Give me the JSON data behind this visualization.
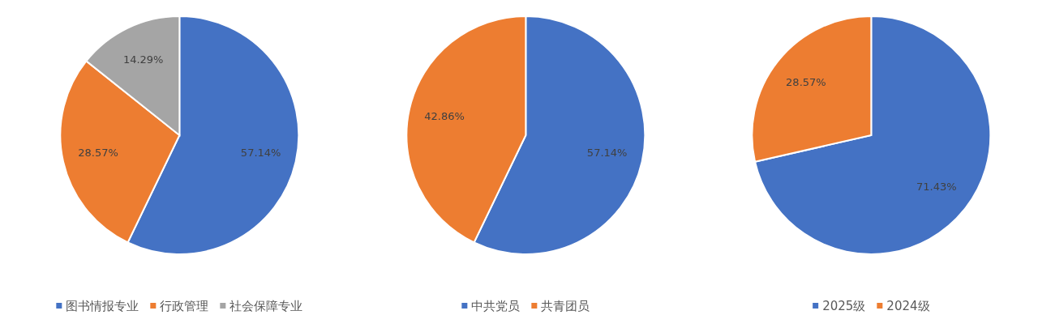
{
  "chart_data": [
    {
      "type": "pie",
      "categories": [
        "图书情报专业",
        "行政管理",
        "社会保障专业"
      ],
      "values": [
        57.14,
        28.57,
        14.29
      ],
      "colors": [
        "#4472c4",
        "#ed7d31",
        "#a5a5a5"
      ],
      "value_labels": [
        "57.14%",
        "28.57%",
        "14.29%"
      ],
      "legend": "bottom"
    },
    {
      "type": "pie",
      "categories": [
        "中共党员",
        "共青团员"
      ],
      "values": [
        57.14,
        42.86
      ],
      "colors": [
        "#4472c4",
        "#ed7d31"
      ],
      "value_labels": [
        "57.14%",
        "42.86%"
      ],
      "legend": "bottom"
    },
    {
      "type": "pie",
      "categories": [
        "2025级",
        "2024级"
      ],
      "values": [
        71.43,
        28.57
      ],
      "colors": [
        "#4472c4",
        "#ed7d31"
      ],
      "value_labels": [
        "71.43%",
        "28.57%"
      ],
      "legend": "bottom"
    }
  ]
}
